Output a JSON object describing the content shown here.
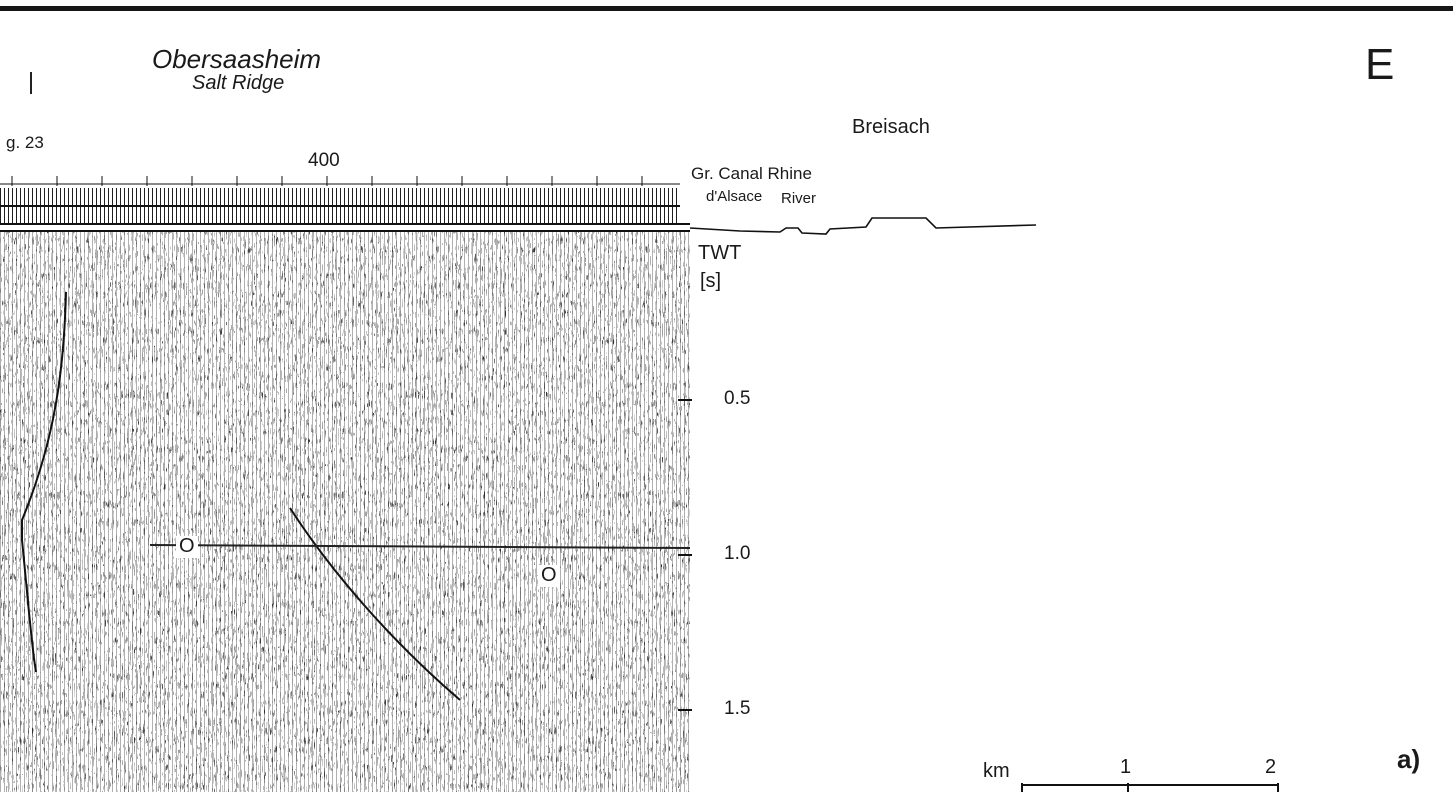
{
  "header": {
    "location_title": "Obersaasheim",
    "location_subtitle": "Salt Ridge",
    "direction_label": "E",
    "fig_reference": "g. 23",
    "town_label": "Breisach",
    "panel_label": "a)"
  },
  "section": {
    "cdp_label": "400",
    "feature_line1": "Gr. Canal Rhine",
    "feature_line2_a": "d'Alsace",
    "feature_line2_b": "River"
  },
  "axis": {
    "title": "TWT",
    "unit": "[s]",
    "ticks": [
      {
        "label": "0.5",
        "value": 0.5
      },
      {
        "label": "1.0",
        "value": 1.0
      },
      {
        "label": "1.5",
        "value": 1.5
      }
    ]
  },
  "horizon_markers": [
    {
      "label": "O"
    },
    {
      "label": "O"
    }
  ],
  "scale_bar": {
    "unit": "km",
    "ticks": [
      "1",
      "2"
    ]
  }
}
